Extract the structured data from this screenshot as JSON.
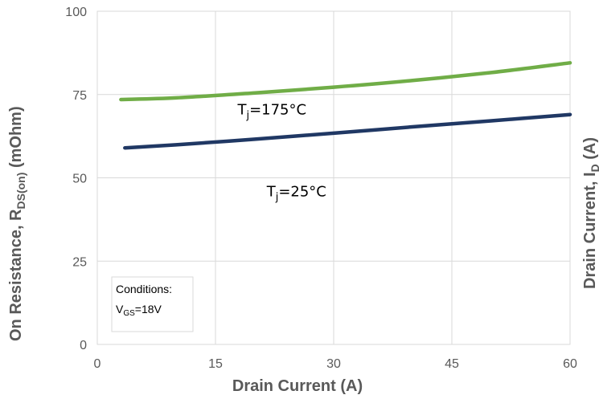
{
  "chart_data": {
    "type": "line",
    "xlabel": "Drain Current (A)",
    "ylabel": {
      "prefix": "On Resistance, R",
      "sub": "DS(on)",
      "suffix": " (mOhm)"
    },
    "y2label": {
      "prefix": "Drain Current, I",
      "sub": "D",
      "suffix": " (A)"
    },
    "xlim": [
      0,
      60
    ],
    "ylim": [
      0,
      100
    ],
    "xticks": [
      "0",
      "15",
      "30",
      "45",
      "60"
    ],
    "yticks": [
      "0",
      "25",
      "50",
      "75",
      "100"
    ],
    "grid": true,
    "series": [
      {
        "color": "#70ad47",
        "x": [
          3,
          10,
          20,
          30,
          40,
          50,
          60
        ],
        "y": [
          73.5,
          74,
          75.5,
          77.2,
          79.2,
          81.6,
          84.5
        ]
      },
      {
        "color": "#203864",
        "x": [
          3.5,
          10,
          20,
          30,
          40,
          50,
          60
        ],
        "y": [
          59,
          59.9,
          61.6,
          63.4,
          65.3,
          67.1,
          69
        ]
      }
    ],
    "annotations": [
      {
        "prefix": "T",
        "sub": "j",
        "suffix": "=175°C",
        "x": 17.8,
        "y": 69
      },
      {
        "prefix": "T",
        "sub": "j",
        "suffix": "=25°C",
        "x": 21.5,
        "y": 44.5
      }
    ],
    "conditions": {
      "title": "Conditions:",
      "prefix": "V",
      "sub": "GS",
      "suffix": "=18V"
    }
  }
}
